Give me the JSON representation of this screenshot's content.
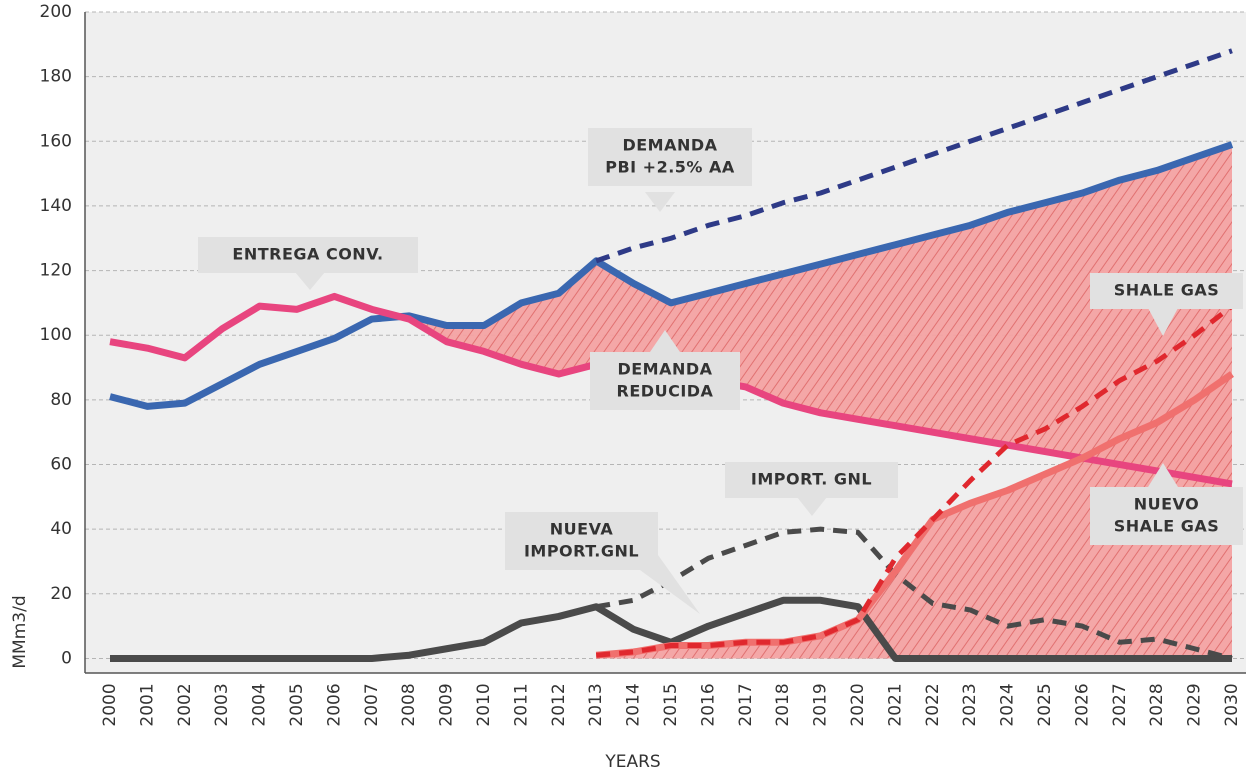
{
  "chart_data": {
    "type": "line",
    "x_label": "YEARS",
    "y_label": "MMm3/d",
    "categories": [
      "2000",
      "2001",
      "2002",
      "2003",
      "2004",
      "2005",
      "2006",
      "2007",
      "2008",
      "2009",
      "2010",
      "2011",
      "2012",
      "2013",
      "2014",
      "2015",
      "2016",
      "2017",
      "2018",
      "2019",
      "2020",
      "2021",
      "2022",
      "2023",
      "2024",
      "2025",
      "2026",
      "2027",
      "2028",
      "2029",
      "2030"
    ],
    "ylim": [
      -4.5,
      200
    ],
    "yticks": [
      0,
      20,
      40,
      60,
      80,
      100,
      120,
      140,
      160,
      180,
      200
    ],
    "grid": true,
    "series": [
      {
        "color": "#3a67b0",
        "style": "solid",
        "values": [
          81,
          78,
          79,
          85,
          91,
          95,
          99,
          105,
          106,
          103,
          103,
          110,
          113,
          123,
          116,
          110,
          113,
          116,
          119,
          122,
          125,
          128,
          131,
          134,
          138,
          141,
          144,
          148,
          151,
          155,
          159
        ]
      },
      {
        "color": "#2e3a87",
        "style": "dashed",
        "values": [
          null,
          null,
          null,
          null,
          null,
          null,
          null,
          null,
          null,
          null,
          null,
          null,
          null,
          123,
          127,
          130,
          134,
          137,
          141,
          144,
          148,
          152,
          156,
          160,
          164,
          168,
          172,
          176,
          180,
          184,
          188
        ]
      },
      {
        "color": "#e8457f",
        "style": "solid",
        "values": [
          98,
          96,
          93,
          102,
          109,
          108,
          112,
          108,
          105,
          98,
          95,
          91,
          88,
          91,
          90,
          88,
          86,
          84,
          79,
          76,
          74,
          72,
          70,
          68,
          66,
          64,
          62,
          60,
          58,
          56,
          54
        ]
      },
      {
        "color": "#4a4a4a",
        "style": "solid",
        "values": [
          0,
          0,
          0,
          0,
          0,
          0,
          0,
          0,
          1,
          3,
          5,
          11,
          13,
          16,
          9,
          5,
          10,
          14,
          18,
          18,
          16,
          0,
          0,
          0,
          0,
          0,
          0,
          0,
          0,
          0,
          0
        ]
      },
      {
        "color": "#4a4a4a",
        "style": "dashed",
        "values": [
          null,
          null,
          null,
          null,
          null,
          null,
          null,
          null,
          null,
          null,
          null,
          null,
          null,
          16,
          18,
          24,
          31,
          35,
          39,
          40,
          39,
          26,
          17,
          15,
          10,
          12,
          10,
          5,
          6,
          3,
          0
        ]
      },
      {
        "color": "#f0706e",
        "style": "solid",
        "values": [
          null,
          null,
          null,
          null,
          null,
          null,
          null,
          null,
          null,
          null,
          null,
          null,
          null,
          1,
          2,
          4,
          4,
          5,
          5,
          7,
          12,
          27,
          43,
          48,
          52,
          57,
          62,
          68,
          73,
          80,
          88
        ]
      },
      {
        "color": "#e0282e",
        "style": "dashed",
        "values": [
          null,
          null,
          null,
          null,
          null,
          null,
          null,
          null,
          null,
          null,
          null,
          null,
          null,
          1,
          2,
          4,
          4,
          5,
          5,
          7,
          12,
          31,
          43,
          55,
          66,
          71,
          78,
          86,
          92,
          100,
          109
        ]
      }
    ],
    "annotations": [
      {
        "lines": [
          "DEMANDA",
          "PBI +2.5% AA"
        ]
      },
      {
        "lines": [
          "ENTREGA CONV."
        ]
      },
      {
        "lines": [
          "DEMANDA",
          "REDUCIDA"
        ]
      },
      {
        "lines": [
          "SHALE GAS"
        ]
      },
      {
        "lines": [
          "NUEVO",
          "SHALE GAS"
        ]
      },
      {
        "lines": [
          "IMPORT. GNL"
        ]
      },
      {
        "lines": [
          "NUEVA",
          "IMPORT.GNL"
        ]
      }
    ]
  }
}
